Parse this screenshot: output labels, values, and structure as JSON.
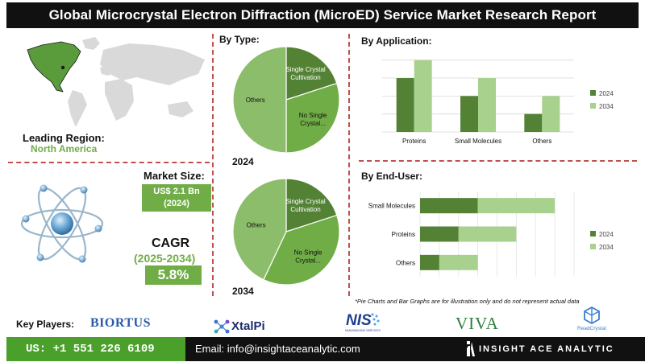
{
  "title": "Global Microcrystal Electron Diffraction (MicroED) Service Market Research Report",
  "region": {
    "label": "Leading Region:",
    "value": "North America"
  },
  "market_size": {
    "label": "Market Size:",
    "value_line1": "US$ 2.1 Bn",
    "value_line2": "(2024)"
  },
  "cagr": {
    "label": "CAGR",
    "period": "(2025-2034)",
    "value": "5.8%"
  },
  "note": "*Pie Charts and Bar Graphs are for illustration only and do not represent actual data",
  "key_players": {
    "label": "Key Players:",
    "logos": [
      "BIORTUS",
      "XtalPi",
      "NIS",
      "VIVA",
      "ReadCrystal"
    ],
    "nis_sub": "NANOIMAGING SERVICES"
  },
  "footer": {
    "phone": "US: +1 551 226 6109",
    "email": "Email: info@insightaceanalytic.com",
    "brand": "INSIGHT ACE ANALYTIC"
  },
  "colors": {
    "dark_green": "#548235",
    "light_green": "#a9d18e",
    "mid_green": "#70ad47",
    "pie_main": "#8cbd6a",
    "divider": "#c0504d"
  },
  "chart_data": [
    {
      "type": "pie",
      "title": "By Type:",
      "year": "2024",
      "labels": [
        "Single Crystal Cultivation",
        "No Single Crystal...",
        "Others"
      ],
      "label_lines": [
        [
          "Single Crystal",
          "Cultivation"
        ],
        [
          "No Single",
          "Crystal..."
        ],
        [
          "Others"
        ]
      ],
      "values": [
        20,
        30,
        50
      ]
    },
    {
      "type": "pie",
      "year": "2034",
      "labels": [
        "Single Crystal Cultivation",
        "No Single Crystal...",
        "Others"
      ],
      "label_lines": [
        [
          "Single Crystal",
          "Cultivation"
        ],
        [
          "No Single",
          "Crystal..."
        ],
        [
          "Others"
        ]
      ],
      "values": [
        20,
        37,
        43
      ]
    },
    {
      "type": "bar",
      "title": "By Application:",
      "categories": [
        "Proteins",
        "Small Molecules",
        "Others"
      ],
      "series": [
        {
          "name": "2024",
          "values": [
            3,
            2,
            1
          ]
        },
        {
          "name": "2034",
          "values": [
            4,
            3,
            2
          ]
        }
      ],
      "ylim": [
        0,
        4.3
      ],
      "grid": true,
      "legend": "right"
    },
    {
      "type": "bar",
      "orientation": "horizontal",
      "stacked": true,
      "title": "By End-User:",
      "categories": [
        "Small Molecules",
        "Proteins",
        "Others"
      ],
      "series": [
        {
          "name": "2024",
          "values": [
            3,
            2,
            1
          ]
        },
        {
          "name": "2034",
          "values": [
            4,
            3,
            2
          ]
        }
      ],
      "xlim": [
        0,
        8
      ],
      "grid": true,
      "legend": "right"
    }
  ]
}
